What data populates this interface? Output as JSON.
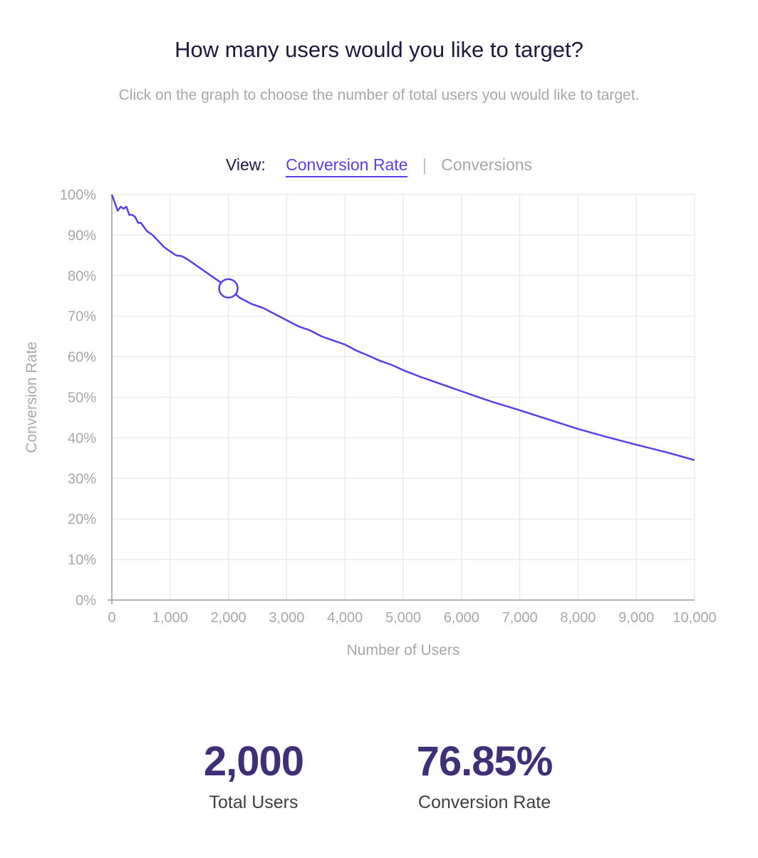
{
  "header": {
    "title": "How many users would you like to target?",
    "subtitle": "Click on the graph to choose the number of total users you would like to target."
  },
  "view_toggle": {
    "label": "View:",
    "options": [
      "Conversion Rate",
      "Conversions"
    ],
    "separator": "|",
    "active": "Conversion Rate"
  },
  "colors": {
    "accent": "#5a3ee6",
    "stat": "#3f2f78",
    "grid": "#e2e2e2",
    "axis_text": "#a7a7a7"
  },
  "chart_data": {
    "type": "line",
    "xlabel": "Number of Users",
    "ylabel": "Conversion Rate",
    "xlim": [
      0,
      10000
    ],
    "ylim": [
      0,
      100
    ],
    "x_ticks": [
      "0",
      "1,000",
      "2,000",
      "3,000",
      "4,000",
      "5,000",
      "6,000",
      "7,000",
      "8,000",
      "9,000",
      "10,000"
    ],
    "y_ticks": [
      "0%",
      "10%",
      "20%",
      "30%",
      "40%",
      "50%",
      "60%",
      "70%",
      "80%",
      "90%",
      "100%"
    ],
    "grid": true,
    "series": [
      {
        "x": [
          0,
          50,
          100,
          150,
          200,
          250,
          300,
          350,
          400,
          450,
          500,
          550,
          600,
          650,
          700,
          800,
          900,
          1000,
          1100,
          1200,
          1300,
          1400,
          1500,
          1600,
          1700,
          1800,
          1900,
          2000,
          2200,
          2400,
          2600,
          2800,
          3000,
          3200,
          3400,
          3600,
          3800,
          4000,
          4200,
          4400,
          4600,
          4800,
          5000,
          5300,
          5600,
          6000,
          6500,
          7000,
          7500,
          8000,
          8500,
          9000,
          9500,
          10000
        ],
        "y": [
          100,
          98,
          96,
          97,
          96.5,
          97,
          95,
          95,
          94.5,
          93,
          93,
          92,
          91,
          90.5,
          90,
          88.5,
          87,
          86,
          85,
          84.8,
          84,
          83,
          82,
          81,
          80,
          79,
          78,
          76.85,
          74.5,
          73,
          72,
          70.5,
          69,
          67.5,
          66.5,
          65,
          64,
          63,
          61.5,
          60.3,
          59,
          58,
          56.7,
          55,
          53.5,
          51.5,
          49,
          46.8,
          44.5,
          42.2,
          40.2,
          38.3,
          36.5,
          34.5
        ]
      }
    ],
    "selected": {
      "x": 2000,
      "y": 76.85
    }
  },
  "stats": {
    "total_users_value": "2,000",
    "total_users_label": "Total Users",
    "conversion_rate_value": "76.85%",
    "conversion_rate_label": "Conversion Rate"
  }
}
